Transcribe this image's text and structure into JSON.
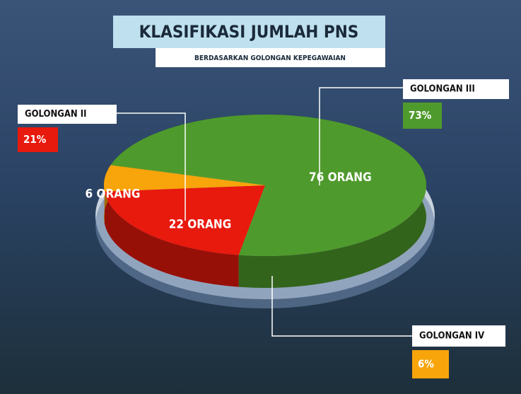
{
  "chart_data": {
    "type": "pie",
    "title": "KLASIFIKASI JUMLAH PNS",
    "subtitle": "BERDASARKAN GOLONGAN KEPEGAWAIAN",
    "categories": [
      "GOLONGAN II",
      "GOLONGAN III",
      "GOLONGAN IV"
    ],
    "values": [
      21,
      73,
      6
    ],
    "value_labels": [
      "21%",
      "73%",
      "6%"
    ],
    "counts": [
      22,
      76,
      6
    ],
    "count_labels": [
      "22 ORANG",
      "76 ORANG",
      "6 ORANG"
    ],
    "colors": [
      "#e8190d",
      "#4f9a2c",
      "#f8a40b"
    ]
  }
}
